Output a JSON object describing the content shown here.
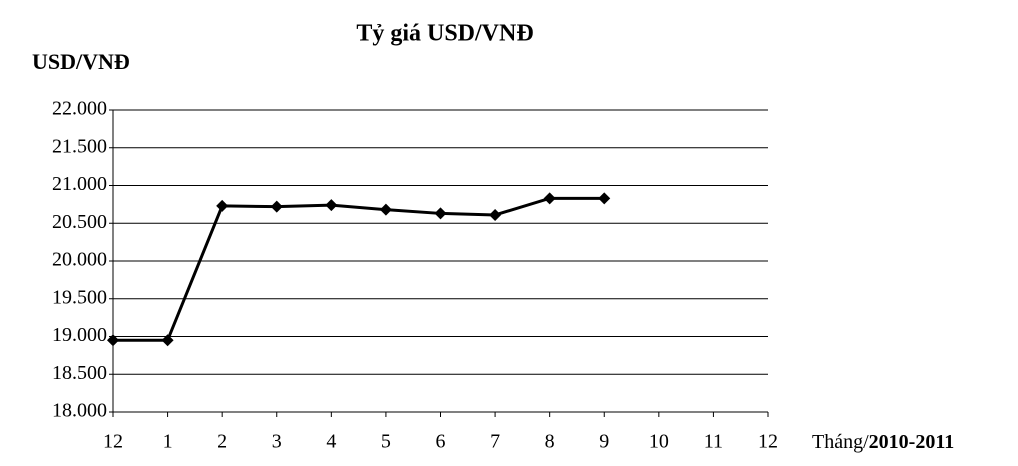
{
  "chart_data": {
    "type": "line",
    "title": "Tỷ giá USD/VNĐ",
    "y_label": "USD/VNĐ",
    "x_label": [
      "Tháng/",
      "2010-2011"
    ],
    "categories": [
      "12",
      "1",
      "2",
      "3",
      "4",
      "5",
      "6",
      "7",
      "8",
      "9",
      "10",
      "11",
      "12"
    ],
    "values": [
      18950,
      18950,
      20730,
      20720,
      20740,
      20680,
      20630,
      20610,
      20830,
      20830,
      null,
      null,
      null
    ],
    "color": "#000000",
    "ylim": [
      18000,
      22000
    ],
    "yticks": [
      {
        "value": 18000,
        "label": "18.000"
      },
      {
        "value": 18500,
        "label": "18.500"
      },
      {
        "value": 19000,
        "label": "19.000"
      },
      {
        "value": 19500,
        "label": "19.500"
      },
      {
        "value": 20000,
        "label": "20.000"
      },
      {
        "value": 20500,
        "label": "20.500"
      },
      {
        "value": 21000,
        "label": "21.000"
      },
      {
        "value": 21500,
        "label": "21.500"
      },
      {
        "value": 22000,
        "label": "22.000"
      }
    ],
    "grid": true
  }
}
